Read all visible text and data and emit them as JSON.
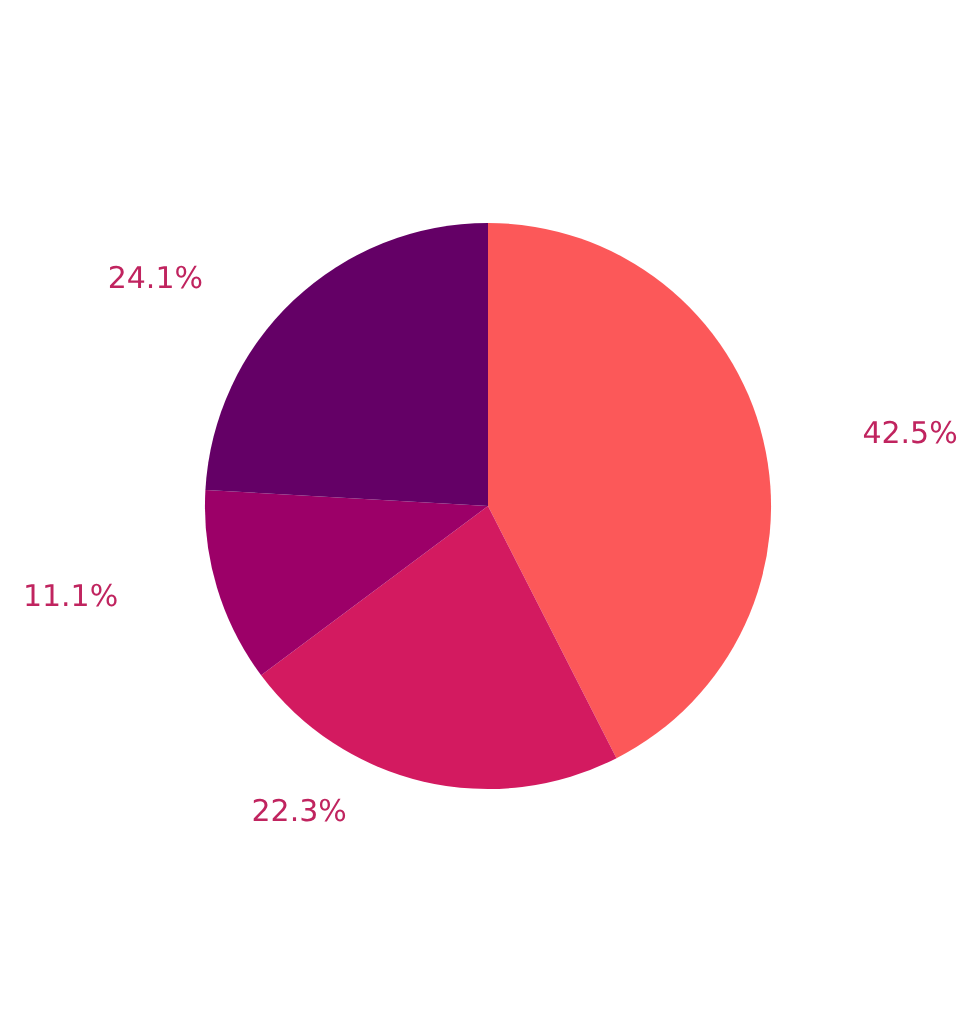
{
  "chart_data": {
    "type": "pie",
    "categories": [
      null,
      null,
      null,
      null
    ],
    "values": [
      42.5,
      22.3,
      11.1,
      24.1
    ],
    "colors": [
      "#fc5859",
      "#d31a60",
      "#9c0068",
      "#640066"
    ],
    "value_labels": [
      "42.5%",
      "22.3%",
      "11.1%",
      "24.1%"
    ]
  }
}
